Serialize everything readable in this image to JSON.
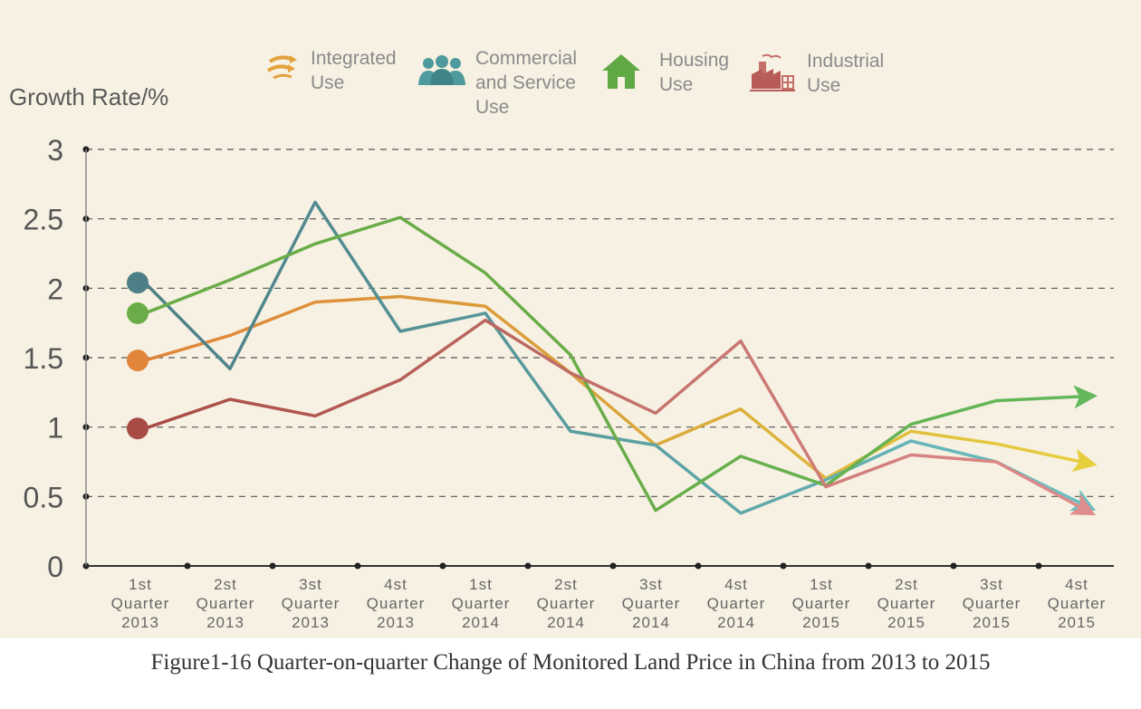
{
  "chart_data": {
    "type": "line",
    "title": "",
    "ylabel": "Growth Rate/%",
    "ylim": [
      0,
      3
    ],
    "yticks": [
      "0",
      "0.5",
      "1",
      "1.5",
      "2",
      "2.5",
      "3"
    ],
    "grid": "horizontal dashed",
    "legend_position": "top",
    "categories": [
      [
        "1st",
        "Quarter",
        "2013"
      ],
      [
        "2st",
        "Quarter",
        "2013"
      ],
      [
        "3st",
        "Quarter",
        "2013"
      ],
      [
        "4st",
        "Quarter",
        "2013"
      ],
      [
        "1st",
        "Quarter",
        "2014"
      ],
      [
        "2st",
        "Quarter",
        "2014"
      ],
      [
        "3st",
        "Quarter",
        "2014"
      ],
      [
        "4st",
        "Quarter",
        "2014"
      ],
      [
        "1st",
        "Quarter",
        "2015"
      ],
      [
        "2st",
        "Quarter",
        "2015"
      ],
      [
        "3st",
        "Quarter",
        "2015"
      ],
      [
        "4st",
        "Quarter",
        "2015"
      ]
    ],
    "series": [
      {
        "name": "Integrated Use",
        "color": "#d9a43a",
        "start_color": "#e0853a",
        "end_color": "#e6cf3e",
        "icon": "integrated-use-icon",
        "values": [
          1.48,
          1.66,
          1.9,
          1.94,
          1.87,
          1.39,
          0.87,
          1.13,
          0.63,
          0.97,
          0.88,
          0.75
        ]
      },
      {
        "name": "Commercial and Service Use",
        "color": "#5a9fa1",
        "start_color": "#4d7f86",
        "end_color": "#6cc0c3",
        "icon": "commercial-service-use-icon",
        "values": [
          2.04,
          1.42,
          2.62,
          1.69,
          1.82,
          0.97,
          0.87,
          0.38,
          0.62,
          0.9,
          0.75,
          0.45
        ]
      },
      {
        "name": "Housing Use",
        "color": "#6aac48",
        "start_color": "#6aac48",
        "end_color": "#62b85a",
        "icon": "housing-use-icon",
        "values": [
          1.82,
          2.06,
          2.32,
          2.51,
          2.11,
          1.52,
          0.4,
          0.79,
          0.58,
          1.02,
          1.19,
          1.22
        ]
      },
      {
        "name": "Industrial Use",
        "color": "#c2706a",
        "start_color": "#a84b45",
        "end_color": "#df8c8c",
        "icon": "industrial-use-icon",
        "values": [
          0.99,
          1.2,
          1.08,
          1.34,
          1.77,
          1.39,
          1.1,
          1.62,
          0.57,
          0.8,
          0.75,
          0.42
        ]
      }
    ]
  },
  "legend": [
    {
      "label": "Integrated\nUse",
      "icon": "integrated-use-icon"
    },
    {
      "label": "Commercial\nand Service\nUse",
      "icon": "commercial-service-use-icon"
    },
    {
      "label": "Housing\nUse",
      "icon": "housing-use-icon"
    },
    {
      "label": "Industrial\nUse",
      "icon": "industrial-use-icon"
    }
  ],
  "caption": "Figure1-16 Quarter-on-quarter Change of Monitored Land Price in China from 2013 to 2015"
}
